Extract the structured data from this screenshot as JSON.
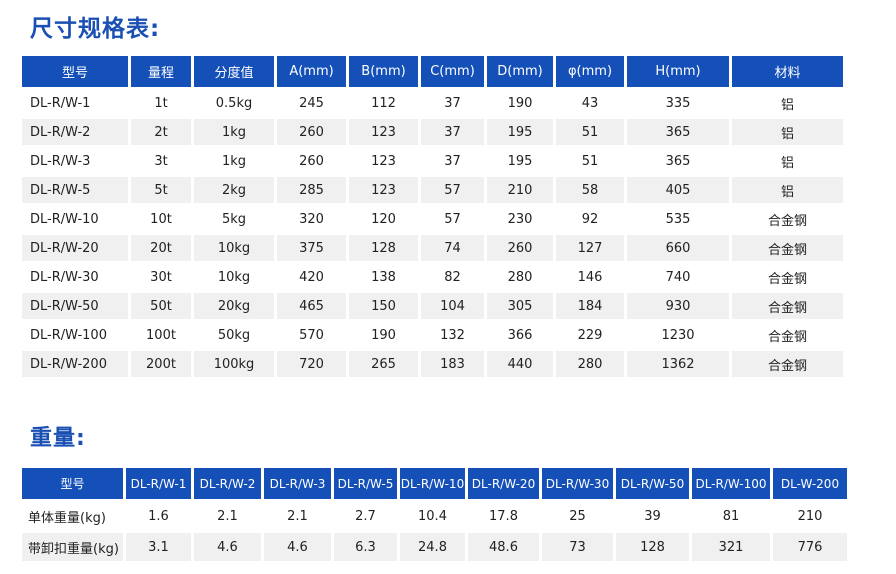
{
  "spec_section": {
    "title": "尺寸规格表:",
    "headers": [
      "型号",
      "量程",
      "分度值",
      "A(mm)",
      "B(mm)",
      "C(mm)",
      "D(mm)",
      "φ(mm)",
      "H(mm)",
      "材料"
    ],
    "rows": [
      [
        "DL-R/W-1",
        "1t",
        "0.5kg",
        "245",
        "112",
        "37",
        "190",
        "43",
        "335",
        "铝"
      ],
      [
        "DL-R/W-2",
        "2t",
        "1kg",
        "260",
        "123",
        "37",
        "195",
        "51",
        "365",
        "铝"
      ],
      [
        "DL-R/W-3",
        "3t",
        "1kg",
        "260",
        "123",
        "37",
        "195",
        "51",
        "365",
        "铝"
      ],
      [
        "DL-R/W-5",
        "5t",
        "2kg",
        "285",
        "123",
        "57",
        "210",
        "58",
        "405",
        "铝"
      ],
      [
        "DL-R/W-10",
        "10t",
        "5kg",
        "320",
        "120",
        "57",
        "230",
        "92",
        "535",
        "合金钢"
      ],
      [
        "DL-R/W-20",
        "20t",
        "10kg",
        "375",
        "128",
        "74",
        "260",
        "127",
        "660",
        "合金钢"
      ],
      [
        "DL-R/W-30",
        "30t",
        "10kg",
        "420",
        "138",
        "82",
        "280",
        "146",
        "740",
        "合金钢"
      ],
      [
        "DL-R/W-50",
        "50t",
        "20kg",
        "465",
        "150",
        "104",
        "305",
        "184",
        "930",
        "合金钢"
      ],
      [
        "DL-R/W-100",
        "100t",
        "50kg",
        "570",
        "190",
        "132",
        "366",
        "229",
        "1230",
        "合金钢"
      ],
      [
        "DL-R/W-200",
        "200t",
        "100kg",
        "720",
        "265",
        "183",
        "440",
        "280",
        "1362",
        "合金钢"
      ]
    ]
  },
  "weight_section": {
    "title": "重量:",
    "headers": [
      "型号",
      "DL-R/W-1",
      "DL-R/W-2",
      "DL-R/W-3",
      "DL-R/W-5",
      "DL-R/W-10",
      "DL-R/W-20",
      "DL-R/W-30",
      "DL-R/W-50",
      "DL-R/W-100",
      "DL-W-200"
    ],
    "rows": [
      [
        "单体重量(kg)",
        "1.6",
        "2.1",
        "2.1",
        "2.7",
        "10.4",
        "17.8",
        "25",
        "39",
        "81",
        "210"
      ],
      [
        "带卸扣重量(kg)",
        "3.1",
        "4.6",
        "4.6",
        "6.3",
        "24.8",
        "48.6",
        "73",
        "128",
        "321",
        "776"
      ]
    ]
  },
  "colors": {
    "title": "#1a4fb3",
    "header_bg": "#1450b8",
    "stripe_bg": "#f0f0f0"
  }
}
